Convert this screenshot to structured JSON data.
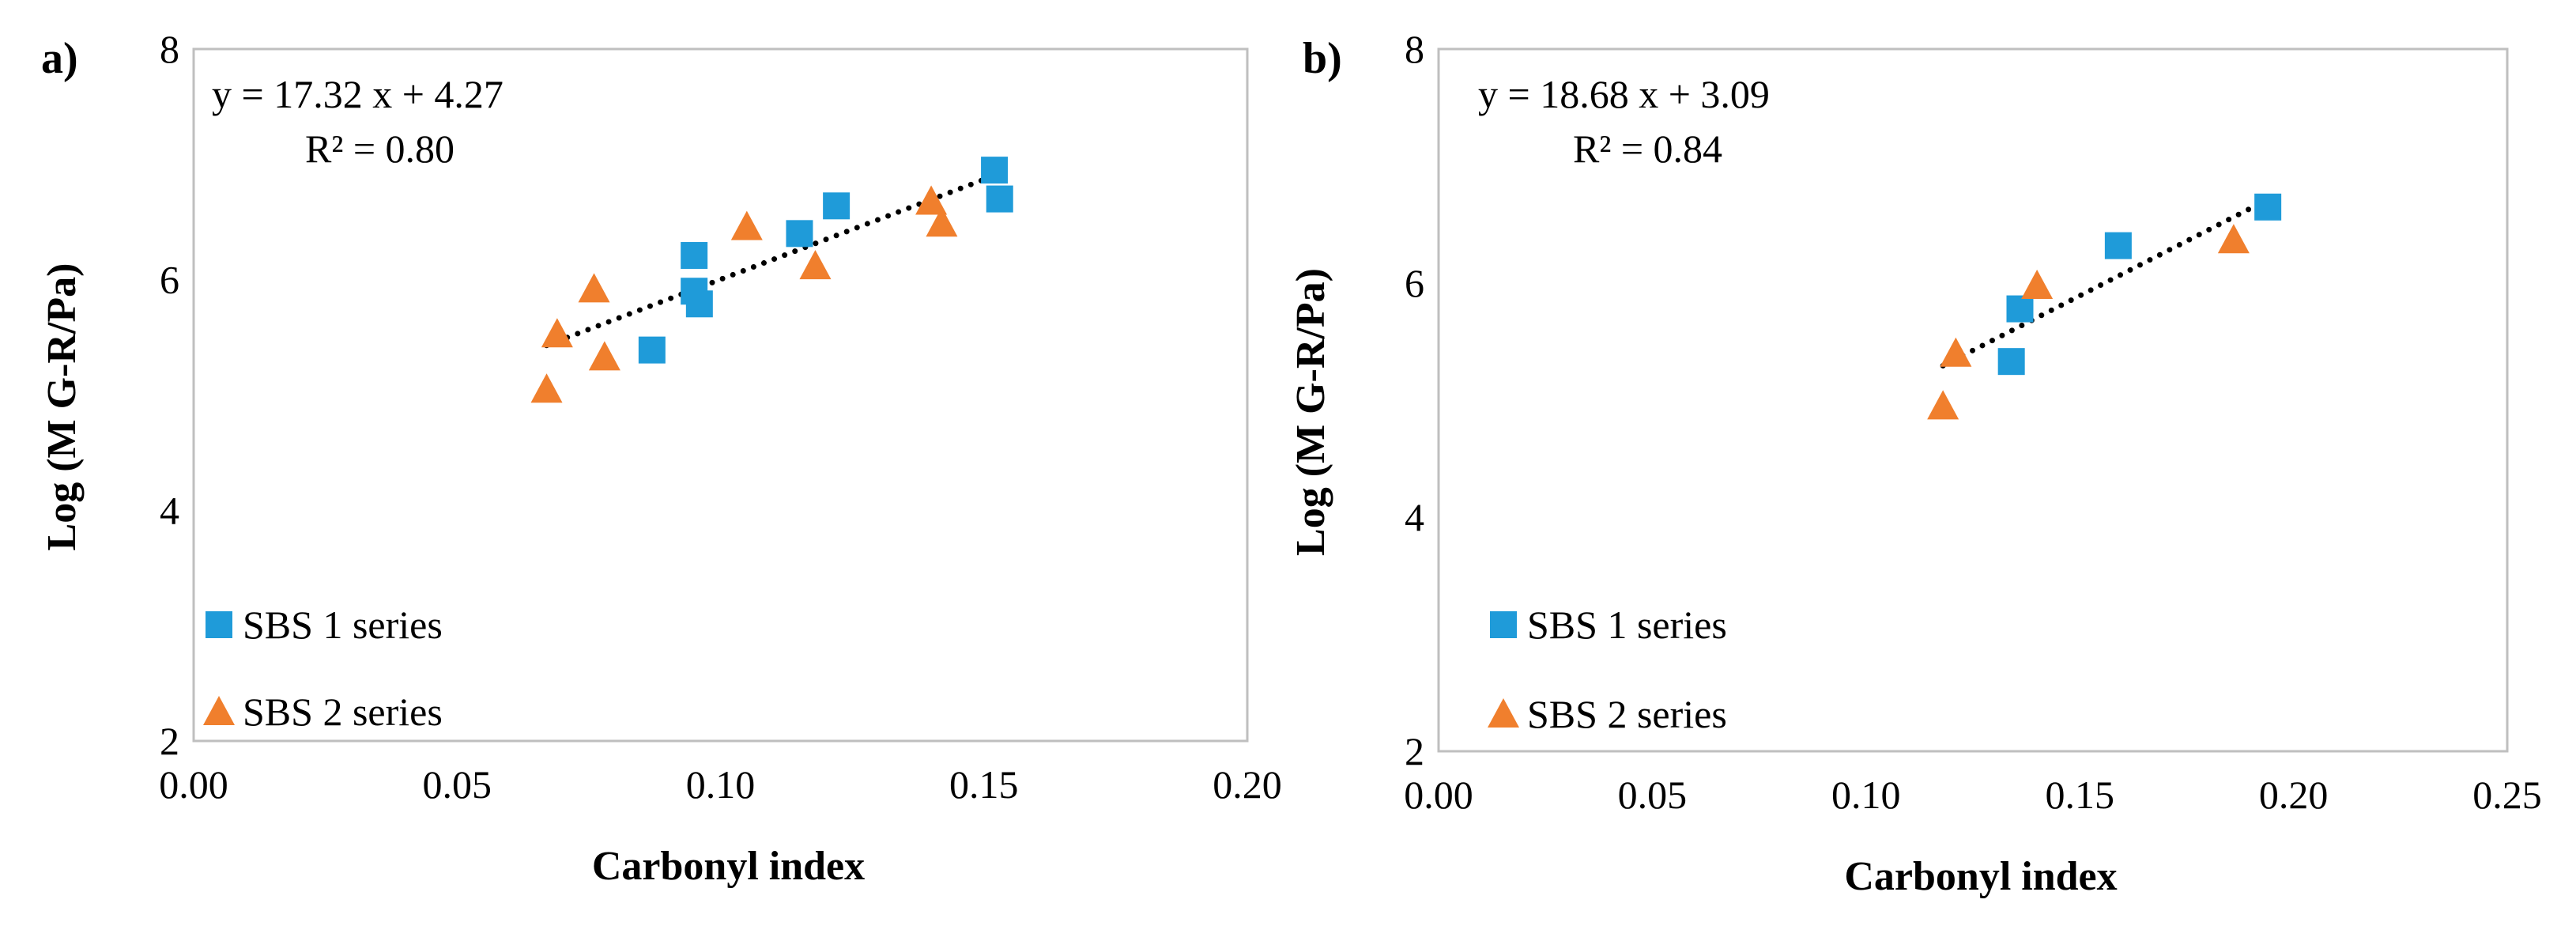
{
  "chart_data": [
    {
      "type": "scatter",
      "panel_label": "a)",
      "xlabel": "Carbonyl index",
      "ylabel": "Log (M G-R/Pa)",
      "xlim": [
        0,
        0.2
      ],
      "ylim": [
        2,
        8
      ],
      "x_ticks": [
        "0.00",
        "0.05",
        "0.10",
        "0.15",
        "0.20"
      ],
      "x_tick_values": [
        0,
        0.05,
        0.1,
        0.15,
        0.2
      ],
      "y_ticks": [
        "2",
        "4",
        "6",
        "8"
      ],
      "y_tick_values": [
        2,
        4,
        6,
        8
      ],
      "series": [
        {
          "name": "SBS 1 series",
          "marker": "square",
          "color": "#1f9bd9",
          "points": [
            [
              0.087,
              5.39
            ],
            [
              0.095,
              6.21
            ],
            [
              0.095,
              5.9
            ],
            [
              0.096,
              5.79
            ],
            [
              0.115,
              6.4
            ],
            [
              0.122,
              6.64
            ],
            [
              0.152,
              6.95
            ],
            [
              0.153,
              6.7
            ]
          ]
        },
        {
          "name": "SBS 2 series",
          "marker": "triangle",
          "color": "#f07f2d",
          "points": [
            [
              0.067,
              5.05
            ],
            [
              0.069,
              5.53
            ],
            [
              0.076,
              5.92
            ],
            [
              0.078,
              5.33
            ],
            [
              0.105,
              6.46
            ],
            [
              0.118,
              6.12
            ],
            [
              0.14,
              6.68
            ],
            [
              0.142,
              6.49
            ]
          ]
        }
      ],
      "trendline": {
        "slope": 17.32,
        "intercept": 4.27,
        "x_range": [
          0.067,
          0.153
        ],
        "color": "#000000",
        "style": "dotted"
      },
      "equation_text": "y = 17.32 x + 4.27",
      "r2_text": "R² = 0.80",
      "legend_position": "bottom-left"
    },
    {
      "type": "scatter",
      "panel_label": "b)",
      "xlabel": "Carbonyl index",
      "ylabel": "Log (M G-R/Pa)",
      "xlim": [
        0,
        0.25
      ],
      "ylim": [
        2,
        8
      ],
      "x_ticks": [
        "0.00",
        "0.05",
        "0.10",
        "0.15",
        "0.20",
        "0.25"
      ],
      "x_tick_values": [
        0,
        0.05,
        0.1,
        0.15,
        0.2,
        0.25
      ],
      "y_ticks": [
        "2",
        "4",
        "6",
        "8"
      ],
      "y_tick_values": [
        2,
        4,
        6,
        8
      ],
      "series": [
        {
          "name": "SBS 1 series",
          "marker": "square",
          "color": "#1f9bd9",
          "points": [
            [
              0.134,
              5.33
            ],
            [
              0.136,
              5.78
            ],
            [
              0.159,
              6.32
            ],
            [
              0.194,
              6.65
            ]
          ]
        },
        {
          "name": "SBS 2 series",
          "marker": "triangle",
          "color": "#f07f2d",
          "points": [
            [
              0.118,
              4.95
            ],
            [
              0.121,
              5.4
            ],
            [
              0.14,
              5.98
            ],
            [
              0.186,
              6.37
            ]
          ]
        }
      ],
      "trendline": {
        "slope": 18.68,
        "intercept": 3.09,
        "x_range": [
          0.118,
          0.194
        ],
        "color": "#000000",
        "style": "dotted"
      },
      "equation_text": "y = 18.68 x + 3.09",
      "r2_text": "R² = 0.84",
      "legend_position": "bottom-left"
    }
  ]
}
